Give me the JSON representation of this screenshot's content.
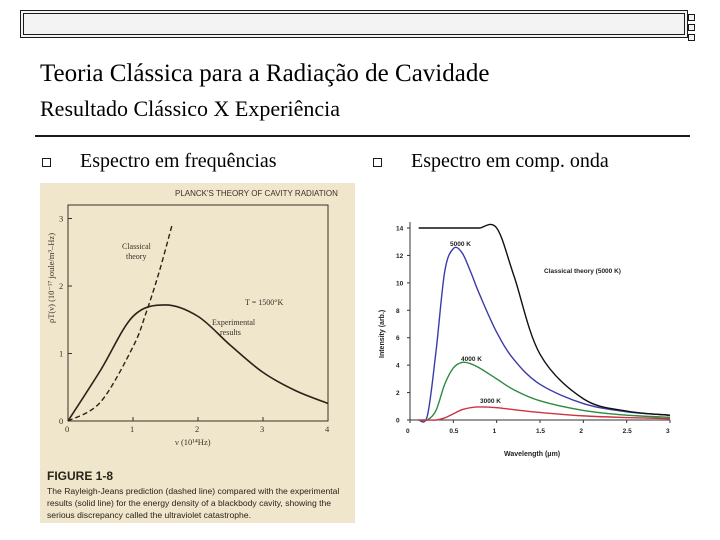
{
  "slide": {
    "title": "Teoria Clássica para a Radiação de Cavidade",
    "subtitle": "Resultado Clássico X Experiência",
    "bullets": [
      {
        "label": "Espectro em frequências"
      },
      {
        "label": "Espectro em comp. onda"
      }
    ]
  },
  "figure_left": {
    "header": "PLANCK'S THEORY OF CAVITY RADIATION",
    "y_label": "ρT(ν) (10⁻¹⁷ joule/m³–Hz)",
    "x_label": "ν (10¹⁴Hz)",
    "x_ticks": [
      "0",
      "1",
      "2",
      "3",
      "4"
    ],
    "y_ticks": [
      "0",
      "1",
      "2",
      "3"
    ],
    "label_classical": [
      "Classical",
      "theory"
    ],
    "label_temp": "T = 1500°K",
    "label_experimental": [
      "Experimental",
      "results"
    ],
    "caption_title": "FIGURE 1-8",
    "caption_text": "The Rayleigh-Jeans prediction (dashed line) compared with the experimental results (solid line) for the energy density of a blackbody cavity, showing the serious discrepancy called the ultraviolet catastrophe."
  },
  "chart_data": [
    {
      "type": "line",
      "title": "",
      "xlabel": "ν (10¹⁴Hz)",
      "ylabel": "ρT(ν) (10⁻¹⁷ joule/m³–Hz)",
      "xlim": [
        0,
        4
      ],
      "ylim": [
        0,
        3.2
      ],
      "x": [
        0,
        0.5,
        1.0,
        1.5,
        2.0,
        2.5,
        3.0,
        3.5,
        4.0
      ],
      "series": [
        {
          "name": "Classical theory",
          "style": "dashed",
          "x": [
            0,
            0.5,
            1.0,
            1.2,
            1.4,
            1.6
          ],
          "values": [
            0,
            0.28,
            1.1,
            1.6,
            2.2,
            2.9
          ]
        },
        {
          "name": "Experimental results",
          "style": "solid",
          "values": [
            0,
            0.75,
            1.55,
            1.72,
            1.55,
            1.12,
            0.72,
            0.45,
            0.26
          ]
        }
      ]
    },
    {
      "type": "line",
      "title": "",
      "xlabel": "Wavelength (μm)",
      "ylabel": "Intensity (arb.)",
      "xlim": [
        0,
        3
      ],
      "ylim": [
        0,
        14
      ],
      "x_ticks": [
        "0",
        "0.5",
        "1",
        "1.5",
        "2",
        "2.5",
        "3"
      ],
      "y_ticks": [
        "0",
        "2",
        "4",
        "6",
        "8",
        "10",
        "12",
        "14"
      ],
      "x": [
        0.1,
        0.2,
        0.3,
        0.4,
        0.5,
        0.6,
        0.7,
        0.8,
        1.0,
        1.2,
        1.5,
        2.0,
        2.5,
        3.0
      ],
      "series": [
        {
          "name": "5000 K",
          "color": "#3b3ba8",
          "values": [
            0,
            0.3,
            5.0,
            10.8,
            12.5,
            12.2,
            10.8,
            9.2,
            6.4,
            4.4,
            2.6,
            1.2,
            0.6,
            0.35
          ]
        },
        {
          "name": "4000 K",
          "color": "#2e8b3e",
          "values": [
            0,
            0,
            0.7,
            2.6,
            3.8,
            4.2,
            4.1,
            3.8,
            3.0,
            2.2,
            1.4,
            0.7,
            0.35,
            0.2
          ]
        },
        {
          "name": "3000 K",
          "color": "#cc3344",
          "values": [
            0,
            0,
            0,
            0.15,
            0.45,
            0.75,
            0.9,
            0.95,
            0.9,
            0.75,
            0.55,
            0.3,
            0.18,
            0.1
          ]
        },
        {
          "name": "Classical theory (5000 K)",
          "color": "#111111",
          "values": [
            14,
            14,
            14,
            14,
            14,
            14,
            14,
            14,
            14,
            10.5,
            4.8,
            1.55,
            0.65,
            0.35
          ]
        }
      ],
      "annotations": [
        "5000 K",
        "4000 K",
        "3000 K",
        "Classical theory (5000 K)"
      ]
    }
  ]
}
